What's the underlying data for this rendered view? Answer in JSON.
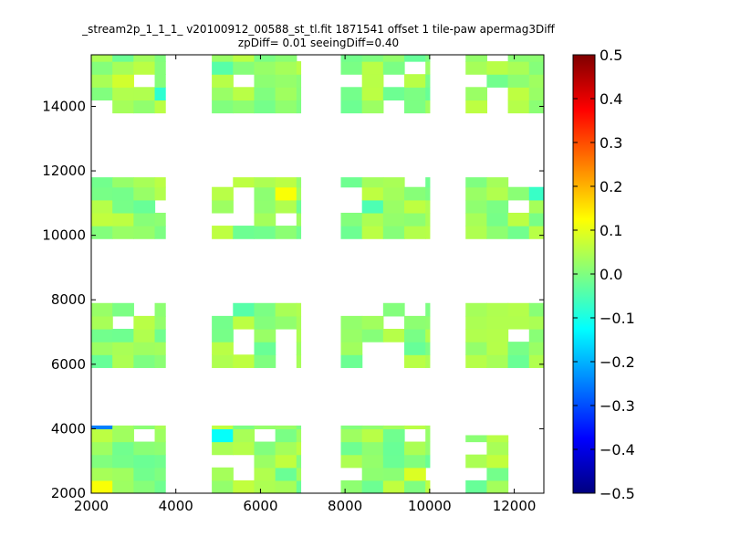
{
  "chart_data": {
    "type": "heatmap",
    "title": "_stream2p_1_1_1_ v20100912_00588_st_tl.fit 1871541 offset 1 tile-paw apermag3Diff",
    "subtitle": "zpDiff= 0.01 seeingDiff=0.40",
    "xlabel": "",
    "ylabel": "",
    "xlim": [
      2000,
      12700
    ],
    "ylim": [
      2000,
      15600
    ],
    "x_ticks": [
      "2000",
      "4000",
      "6000",
      "8000",
      "10000",
      "12000"
    ],
    "y_ticks": [
      "2000",
      "4000",
      "6000",
      "8000",
      "10000",
      "12000",
      "14000"
    ],
    "cell_size": [
      500,
      400
    ],
    "colorbar": {
      "range": [
        -0.5,
        0.5
      ],
      "ticks": [
        "0.5",
        "0.4",
        "0.3",
        "0.2",
        "0.1",
        "0.0",
        "−0.1",
        "−0.2",
        "−0.3",
        "−0.4",
        "−0.5"
      ],
      "colormap": "jet"
    },
    "blocks": [
      {
        "x": [
          2000,
          3750
        ],
        "y": [
          13800,
          15600
        ]
      },
      {
        "x": [
          4850,
          6950
        ],
        "y": [
          13800,
          15600
        ]
      },
      {
        "x": [
          7900,
          10000
        ],
        "y": [
          13800,
          15600
        ]
      },
      {
        "x": [
          10850,
          12700
        ],
        "y": [
          13800,
          15600
        ]
      },
      {
        "x": [
          2000,
          3750
        ],
        "y": [
          9900,
          11800
        ]
      },
      {
        "x": [
          4850,
          6950
        ],
        "y": [
          9900,
          11800
        ]
      },
      {
        "x": [
          7900,
          10000
        ],
        "y": [
          9900,
          11800
        ]
      },
      {
        "x": [
          10850,
          12700
        ],
        "y": [
          9900,
          11800
        ]
      },
      {
        "x": [
          2000,
          3750
        ],
        "y": [
          5900,
          7900
        ]
      },
      {
        "x": [
          4850,
          6950
        ],
        "y": [
          5900,
          7900
        ]
      },
      {
        "x": [
          7900,
          10000
        ],
        "y": [
          5900,
          7900
        ]
      },
      {
        "x": [
          10850,
          12700
        ],
        "y": [
          5900,
          7900
        ]
      },
      {
        "x": [
          2000,
          3750
        ],
        "y": [
          2000,
          4100
        ]
      },
      {
        "x": [
          4850,
          6950
        ],
        "y": [
          2000,
          4100
        ]
      },
      {
        "x": [
          7900,
          10000
        ],
        "y": [
          2000,
          4100
        ]
      },
      {
        "x": [
          10850,
          11850
        ],
        "y": [
          2000,
          3800
        ]
      }
    ],
    "default_value": 0.02,
    "highlights": [
      {
        "x": 2150,
        "y": 4000,
        "value": -0.25
      },
      {
        "x": 2150,
        "y": 2300,
        "value": 0.12
      },
      {
        "x": 2500,
        "y": 15000,
        "value": 0.08
      },
      {
        "x": 3700,
        "y": 14600,
        "value": -0.08
      },
      {
        "x": 5100,
        "y": 3700,
        "value": -0.12
      },
      {
        "x": 5100,
        "y": 15300,
        "value": -0.04
      },
      {
        "x": 11700,
        "y": 13900,
        "value": -0.06
      },
      {
        "x": 6900,
        "y": 11400,
        "value": 0.12
      },
      {
        "x": 10900,
        "y": 6000,
        "value": 0.17
      },
      {
        "x": 9600,
        "y": 2500,
        "value": 0.09
      },
      {
        "x": 12500,
        "y": 11400,
        "value": -0.07
      },
      {
        "x": 8700,
        "y": 11100,
        "value": -0.05
      },
      {
        "x": 5900,
        "y": 7700,
        "value": -0.04
      },
      {
        "x": 11000,
        "y": 14000,
        "value": 0.06
      }
    ]
  }
}
